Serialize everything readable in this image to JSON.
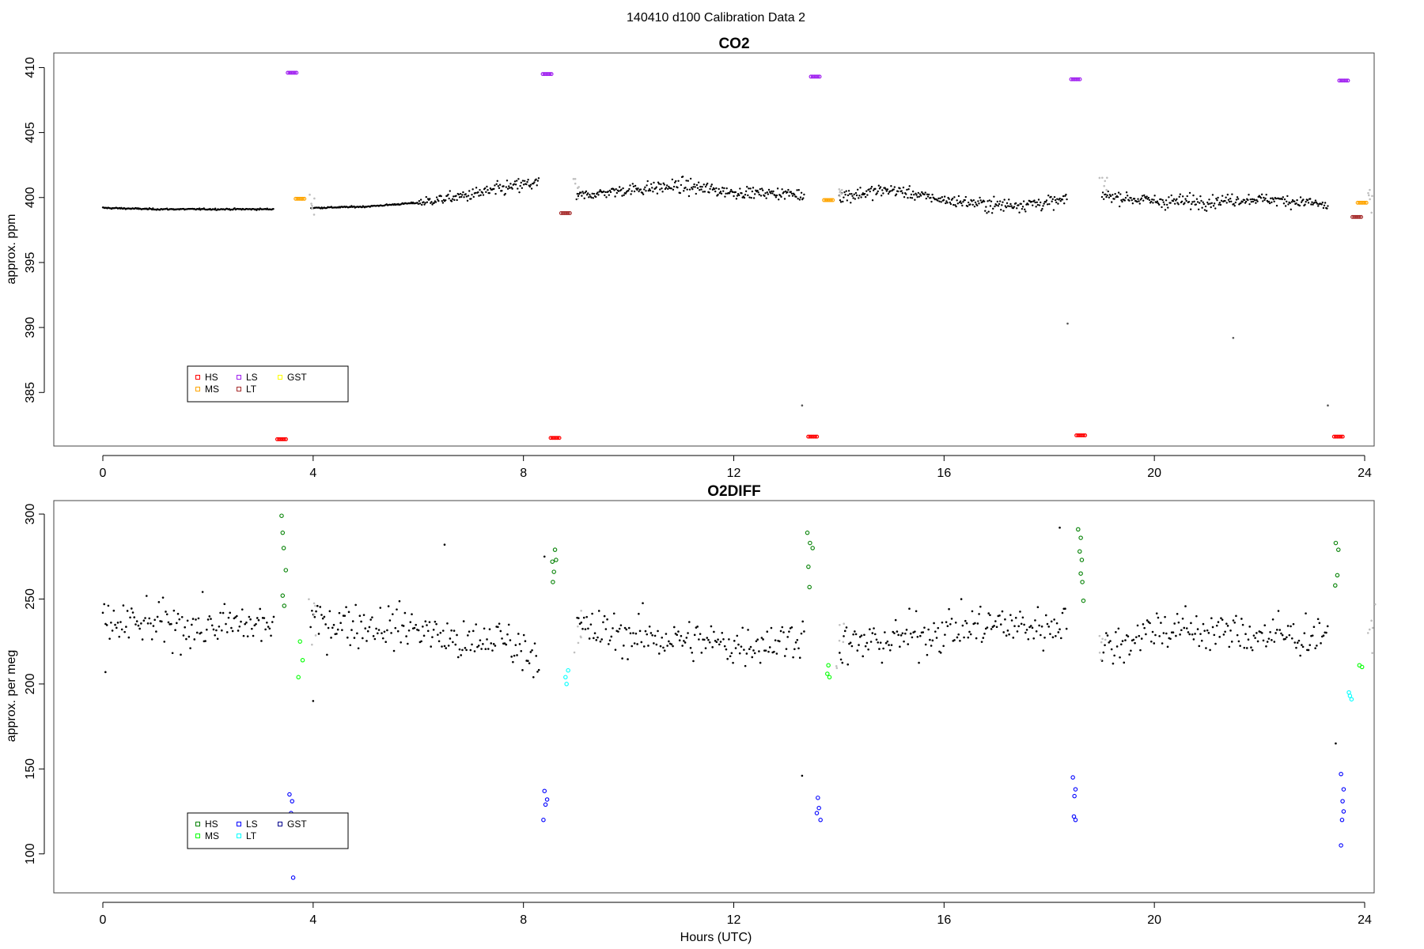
{
  "supertitle": "140410   d100   Calibration Data 2",
  "xlabel": "Hours (UTC)",
  "colors": {
    "HS": "#ff0000",
    "MS": "#ffa500",
    "LS": "#a020f0",
    "LT": "#a52a2a",
    "GST": "#ffff00",
    "HS2": "#008000",
    "MS2": "#00ff00",
    "LS2": "#0000ff",
    "LT2": "#00ffff",
    "GST2": "#00008b",
    "sample": "#000000",
    "flush": "#bfbfbf"
  },
  "chart_data": [
    {
      "type": "scatter",
      "title": "CO2",
      "xlabel": "",
      "ylabel": "approx. ppm",
      "xlim": [
        0,
        24
      ],
      "ylim": [
        381,
        411
      ],
      "xticks": [
        "0",
        "4",
        "8",
        "12",
        "16",
        "20",
        "24"
      ],
      "yticks": [
        "385",
        "390",
        "395",
        "400",
        "405",
        "410"
      ],
      "legend": {
        "position": "bottom-left",
        "entries": [
          "HS",
          "MS",
          "LS",
          "LT",
          "GST"
        ]
      },
      "calibration_points": {
        "HS": [
          [
            3.4,
            381.4
          ],
          [
            8.6,
            381.5
          ],
          [
            13.5,
            381.6
          ],
          [
            18.6,
            381.7
          ],
          [
            23.5,
            381.6
          ]
        ],
        "MS": [
          [
            3.75,
            399.9
          ],
          [
            13.8,
            399.8
          ],
          [
            23.95,
            399.6
          ]
        ],
        "LS": [
          [
            3.6,
            409.6
          ],
          [
            8.45,
            409.5
          ],
          [
            13.55,
            409.3
          ],
          [
            18.5,
            409.1
          ],
          [
            23.6,
            409.0
          ]
        ],
        "LT": [
          [
            8.8,
            398.8
          ],
          [
            23.85,
            398.5
          ]
        ]
      },
      "sample_profile": [
        [
          0,
          399.2
        ],
        [
          1,
          399.1
        ],
        [
          2,
          399.1
        ],
        [
          3.2,
          399.1
        ],
        [
          4,
          399.2
        ],
        [
          5,
          399.3
        ],
        [
          6,
          399.6
        ],
        [
          7,
          400.2
        ],
        [
          7.5,
          400.6
        ],
        [
          8.2,
          401.1
        ],
        [
          9,
          400.1
        ],
        [
          10,
          400.6
        ],
        [
          11,
          400.9
        ],
        [
          12,
          400.4
        ],
        [
          13,
          400.3
        ],
        [
          13.5,
          400.1
        ],
        [
          14.2,
          400.2
        ],
        [
          15,
          400.6
        ],
        [
          16,
          399.8
        ],
        [
          17,
          399.4
        ],
        [
          18,
          399.6
        ],
        [
          19,
          400.2
        ],
        [
          20,
          399.7
        ],
        [
          21,
          399.7
        ],
        [
          22,
          399.9
        ],
        [
          23,
          399.6
        ],
        [
          23.3,
          399.3
        ]
      ],
      "outliers": [
        [
          21.5,
          389.2
        ],
        [
          13.3,
          384.0
        ],
        [
          18.35,
          390.3
        ],
        [
          23.3,
          384.0
        ]
      ]
    },
    {
      "type": "scatter",
      "title": "O2DIFF",
      "xlabel": "Hours (UTC)",
      "ylabel": "approx. per meg",
      "xlim": [
        0,
        24
      ],
      "ylim": [
        78,
        307
      ],
      "xticks": [
        "0",
        "4",
        "8",
        "12",
        "16",
        "20",
        "24"
      ],
      "yticks": [
        "100",
        "150",
        "200",
        "250",
        "300"
      ],
      "legend": {
        "position": "bottom-left",
        "entries": [
          "HS",
          "MS",
          "LS",
          "LT",
          "GST"
        ]
      },
      "calibration_points": {
        "HS": [
          [
            3.4,
            299
          ],
          [
            3.42,
            289
          ],
          [
            3.44,
            280
          ],
          [
            3.48,
            267
          ],
          [
            3.42,
            252
          ],
          [
            3.45,
            246
          ],
          [
            8.55,
            272
          ],
          [
            8.6,
            279
          ],
          [
            8.62,
            273
          ],
          [
            8.58,
            266
          ],
          [
            8.56,
            260
          ],
          [
            13.4,
            289
          ],
          [
            13.45,
            283
          ],
          [
            13.5,
            280
          ],
          [
            13.42,
            269
          ],
          [
            13.44,
            257
          ],
          [
            18.55,
            291
          ],
          [
            18.6,
            286
          ],
          [
            18.58,
            278
          ],
          [
            18.62,
            273
          ],
          [
            18.6,
            265
          ],
          [
            18.63,
            260
          ],
          [
            18.65,
            249
          ],
          [
            23.45,
            283
          ],
          [
            23.5,
            279
          ],
          [
            23.48,
            264
          ],
          [
            23.44,
            258
          ]
        ],
        "MS": [
          [
            3.75,
            225
          ],
          [
            3.8,
            214
          ],
          [
            3.72,
            204
          ],
          [
            13.8,
            211
          ],
          [
            13.82,
            204
          ],
          [
            13.78,
            206
          ],
          [
            23.9,
            211
          ],
          [
            23.95,
            210
          ]
        ],
        "LS": [
          [
            3.55,
            135
          ],
          [
            3.6,
            131
          ],
          [
            3.58,
            124
          ],
          [
            3.62,
            86
          ],
          [
            8.4,
            137
          ],
          [
            8.45,
            132
          ],
          [
            8.42,
            129
          ],
          [
            8.38,
            120
          ],
          [
            13.6,
            133
          ],
          [
            13.62,
            127
          ],
          [
            13.58,
            124
          ],
          [
            13.65,
            120
          ],
          [
            18.45,
            145
          ],
          [
            18.5,
            138
          ],
          [
            18.48,
            134
          ],
          [
            18.47,
            122
          ],
          [
            18.5,
            120
          ],
          [
            23.55,
            147
          ],
          [
            23.6,
            138
          ],
          [
            23.58,
            131
          ],
          [
            23.6,
            125
          ],
          [
            23.57,
            120
          ],
          [
            23.55,
            105
          ]
        ],
        "LT": [
          [
            8.8,
            204
          ],
          [
            8.82,
            200
          ],
          [
            8.85,
            208
          ],
          [
            23.7,
            195
          ],
          [
            23.72,
            193
          ],
          [
            23.75,
            191
          ]
        ]
      },
      "sample_profile": [
        [
          0,
          235
        ],
        [
          1,
          235
        ],
        [
          2,
          234
        ],
        [
          3.2,
          235
        ],
        [
          4,
          237
        ],
        [
          5,
          235
        ],
        [
          6,
          233
        ],
        [
          7,
          222
        ],
        [
          7.5,
          228
        ],
        [
          8.2,
          218
        ],
        [
          9,
          232
        ],
        [
          10,
          229
        ],
        [
          11,
          226
        ],
        [
          12,
          223
        ],
        [
          13,
          226
        ],
        [
          13.3,
          229
        ],
        [
          14,
          222
        ],
        [
          15,
          226
        ],
        [
          16,
          232
        ],
        [
          17,
          235
        ],
        [
          18,
          233
        ],
        [
          18.3,
          240
        ],
        [
          19,
          220
        ],
        [
          19.5,
          226
        ],
        [
          20,
          233
        ],
        [
          21,
          231
        ],
        [
          22,
          229
        ],
        [
          23,
          228
        ],
        [
          23.3,
          233
        ]
      ],
      "outliers": [
        [
          0.05,
          207
        ],
        [
          4,
          190
        ],
        [
          6.5,
          282
        ],
        [
          18.2,
          292
        ],
        [
          8.4,
          275
        ],
        [
          13.3,
          146
        ],
        [
          23.45,
          165
        ]
      ]
    }
  ]
}
